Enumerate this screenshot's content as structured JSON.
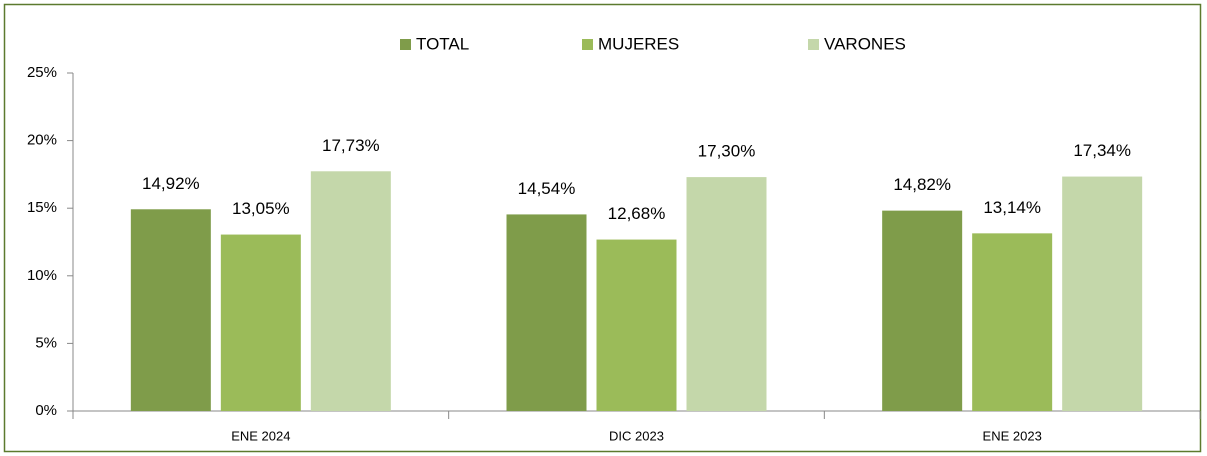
{
  "chart_data": {
    "type": "bar",
    "categories": [
      "ENE 2024",
      "DIC 2023",
      "ENE 2023"
    ],
    "series": [
      {
        "name": "TOTAL",
        "color": "#7f9c4a",
        "values": [
          14.92,
          14.54,
          14.82
        ],
        "value_labels": [
          "14,92%",
          "14,54%",
          "14,82%"
        ]
      },
      {
        "name": "MUJERES",
        "color": "#9bbb59",
        "values": [
          13.05,
          12.68,
          13.14
        ],
        "value_labels": [
          "13,05%",
          "12,68%",
          "13,14%"
        ]
      },
      {
        "name": "VARONES",
        "color": "#c4d7aa",
        "values": [
          17.73,
          17.3,
          17.34
        ],
        "value_labels": [
          "17,73%",
          "17,30%",
          "17,34%"
        ]
      }
    ],
    "ylim": [
      0,
      25
    ],
    "yticks": [
      {
        "value": 0,
        "label": "0%"
      },
      {
        "value": 5,
        "label": "5%"
      },
      {
        "value": 10,
        "label": "10%"
      },
      {
        "value": 15,
        "label": "15%"
      },
      {
        "value": 20,
        "label": "20%"
      },
      {
        "value": 25,
        "label": "25%"
      }
    ],
    "legend": "top"
  }
}
